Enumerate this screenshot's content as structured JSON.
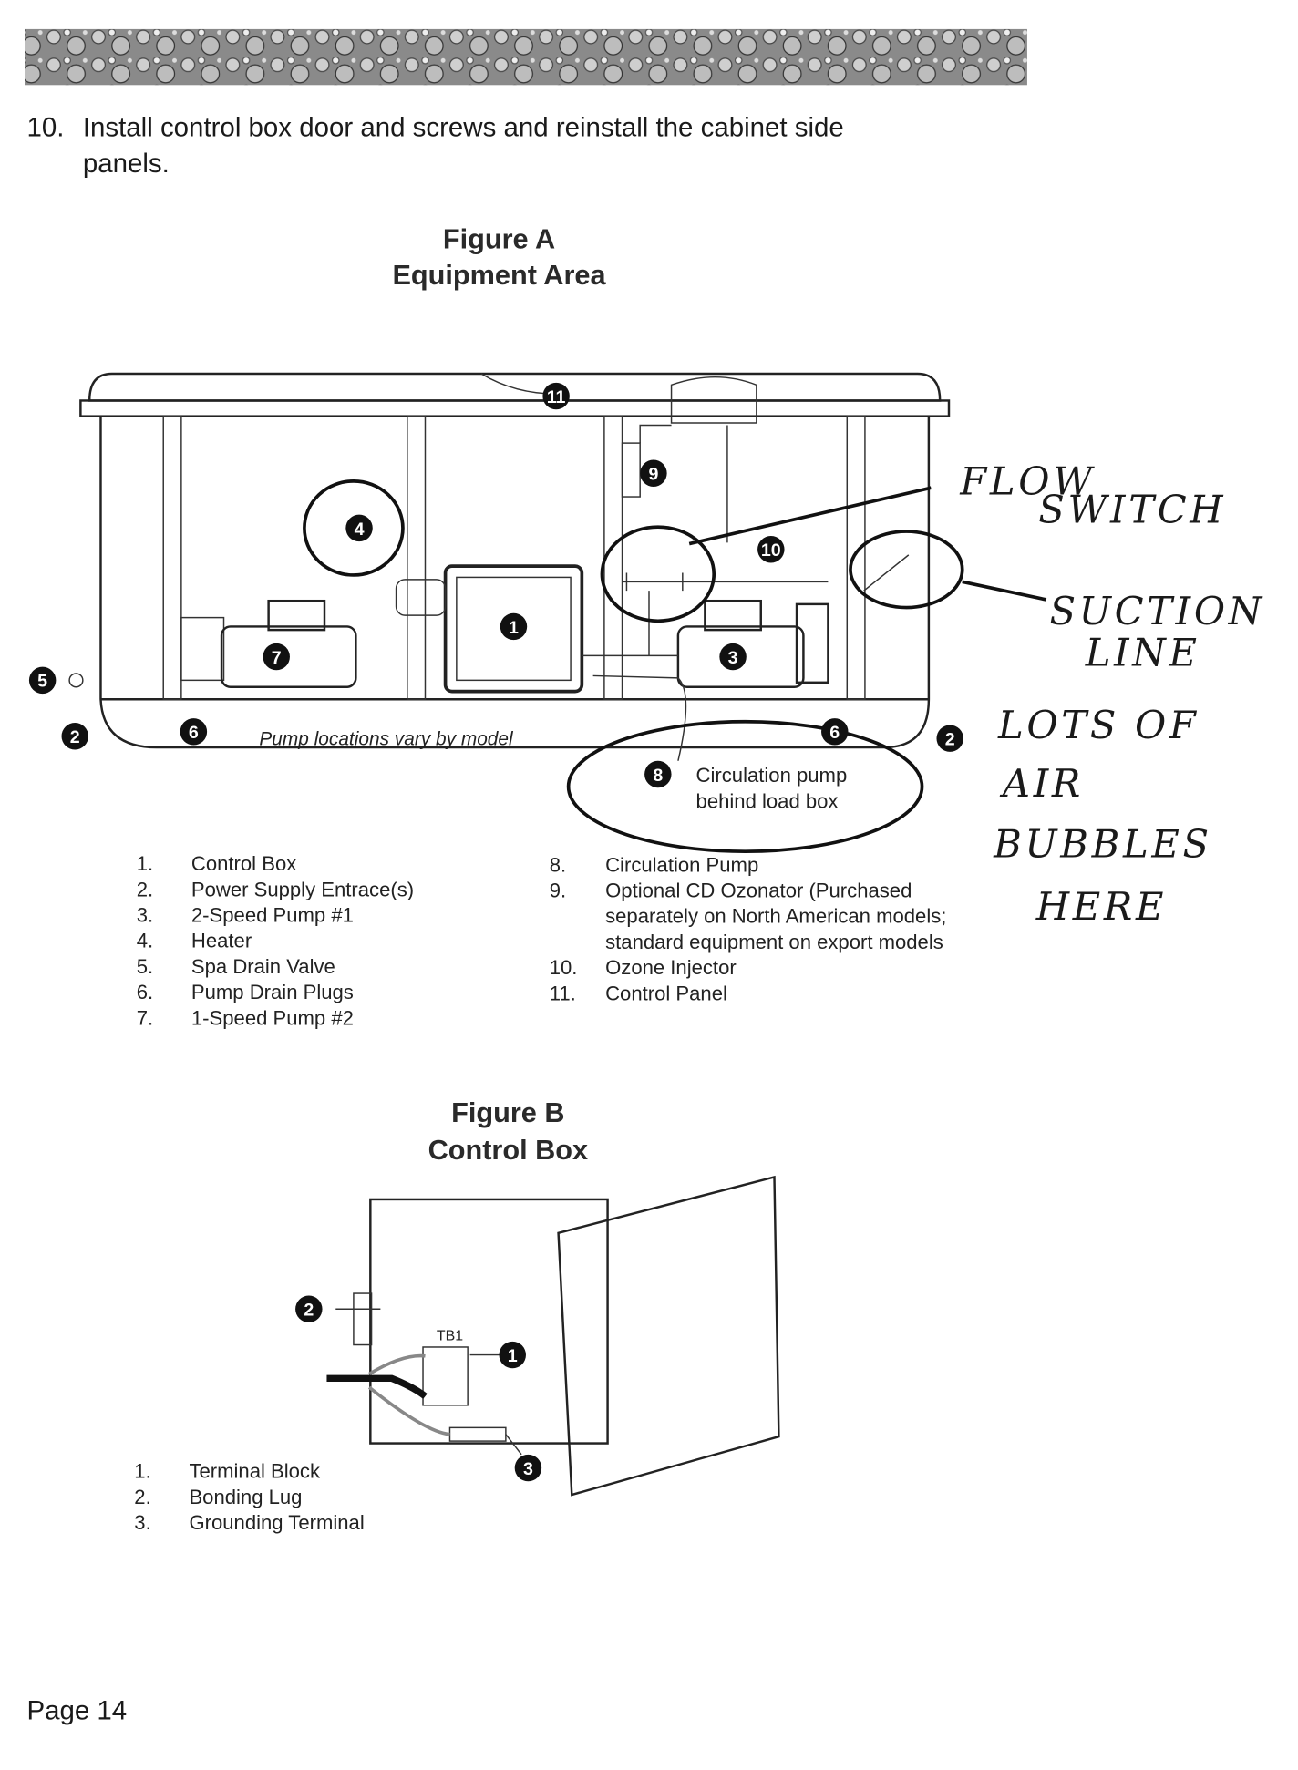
{
  "step": {
    "number": "10.",
    "lines": [
      "Install control box door and screws and reinstall the cabinet side",
      "panels."
    ]
  },
  "figure_a": {
    "title": "Figure A",
    "subtitle": "Equipment Area",
    "callouts": [
      "11",
      "9",
      "4",
      "10",
      "1",
      "7",
      "3",
      "5",
      "2",
      "6",
      "6",
      "2",
      "8"
    ],
    "caption": "Pump locations vary by model",
    "note": [
      "Circulation pump",
      "behind load box"
    ],
    "legend": [
      {
        "num": "1.",
        "lines": [
          "Control Box"
        ]
      },
      {
        "num": "2.",
        "lines": [
          "Power Supply Entrace(s)"
        ]
      },
      {
        "num": "3.",
        "lines": [
          "2-Speed Pump #1"
        ]
      },
      {
        "num": "4.",
        "lines": [
          "Heater"
        ]
      },
      {
        "num": "5.",
        "lines": [
          "Spa Drain Valve"
        ]
      },
      {
        "num": "6.",
        "lines": [
          "Pump Drain Plugs"
        ]
      },
      {
        "num": "7.",
        "lines": [
          "1-Speed Pump #2"
        ]
      },
      {
        "num": "8.",
        "lines": [
          "Circulation Pump"
        ]
      },
      {
        "num": "9.",
        "lines": [
          "Optional CD Ozonator (Purchased",
          "separately on North American models;",
          "standard equipment on export models"
        ]
      },
      {
        "num": "10.",
        "lines": [
          "Ozone Injector"
        ]
      },
      {
        "num": "11.",
        "lines": [
          "Control Panel"
        ]
      }
    ]
  },
  "handwritten": [
    "FLOW",
    "SWITCH",
    "SUCTION",
    "LINE",
    "LOTS OF",
    "AIR",
    "BUBBLES",
    "HERE"
  ],
  "figure_b": {
    "title": "Figure B",
    "subtitle": "Control Box",
    "terminal_label": "TB1",
    "callouts": [
      "2",
      "1",
      "3"
    ],
    "legend": [
      {
        "num": "1.",
        "lines": [
          "Terminal Block"
        ]
      },
      {
        "num": "2.",
        "lines": [
          "Bonding Lug"
        ]
      },
      {
        "num": "3.",
        "lines": [
          "Grounding Terminal"
        ]
      }
    ]
  },
  "footer": {
    "page": "Page 14"
  }
}
